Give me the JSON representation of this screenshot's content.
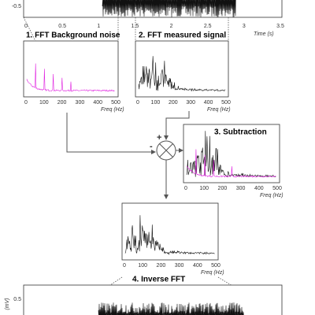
{
  "top_plot": {
    "y_ticks": [
      "-0.5"
    ],
    "x_ticks": [
      "0",
      "0.5",
      "1",
      "1.5",
      "2",
      "2.5",
      "3",
      "3.5"
    ],
    "x_label": "Time (s)"
  },
  "panels": [
    {
      "title": "1. FFT Background noise",
      "x_ticks": [
        "0",
        "100",
        "200",
        "300",
        "400",
        "500"
      ],
      "x_label": "Freq (Hz)"
    },
    {
      "title": "2. FFT measured signal",
      "x_ticks": [
        "0",
        "100",
        "200",
        "300",
        "400",
        "500"
      ],
      "x_label": "Freq (Hz)"
    },
    {
      "title": "3. Subtraction",
      "x_ticks": [
        "0",
        "100",
        "200",
        "300",
        "400",
        "500"
      ],
      "x_label": "Freq (Hz)"
    },
    {
      "title": "4. Inverse FFT",
      "x_ticks": [
        "0",
        "100",
        "200",
        "300",
        "400",
        "500"
      ],
      "x_label": "Freq (Hz)"
    }
  ],
  "signs": {
    "plus": "+",
    "minus": "-"
  },
  "bottom_plot": {
    "y_ticks": [
      "0.5"
    ],
    "y_label": "(mV)"
  }
}
